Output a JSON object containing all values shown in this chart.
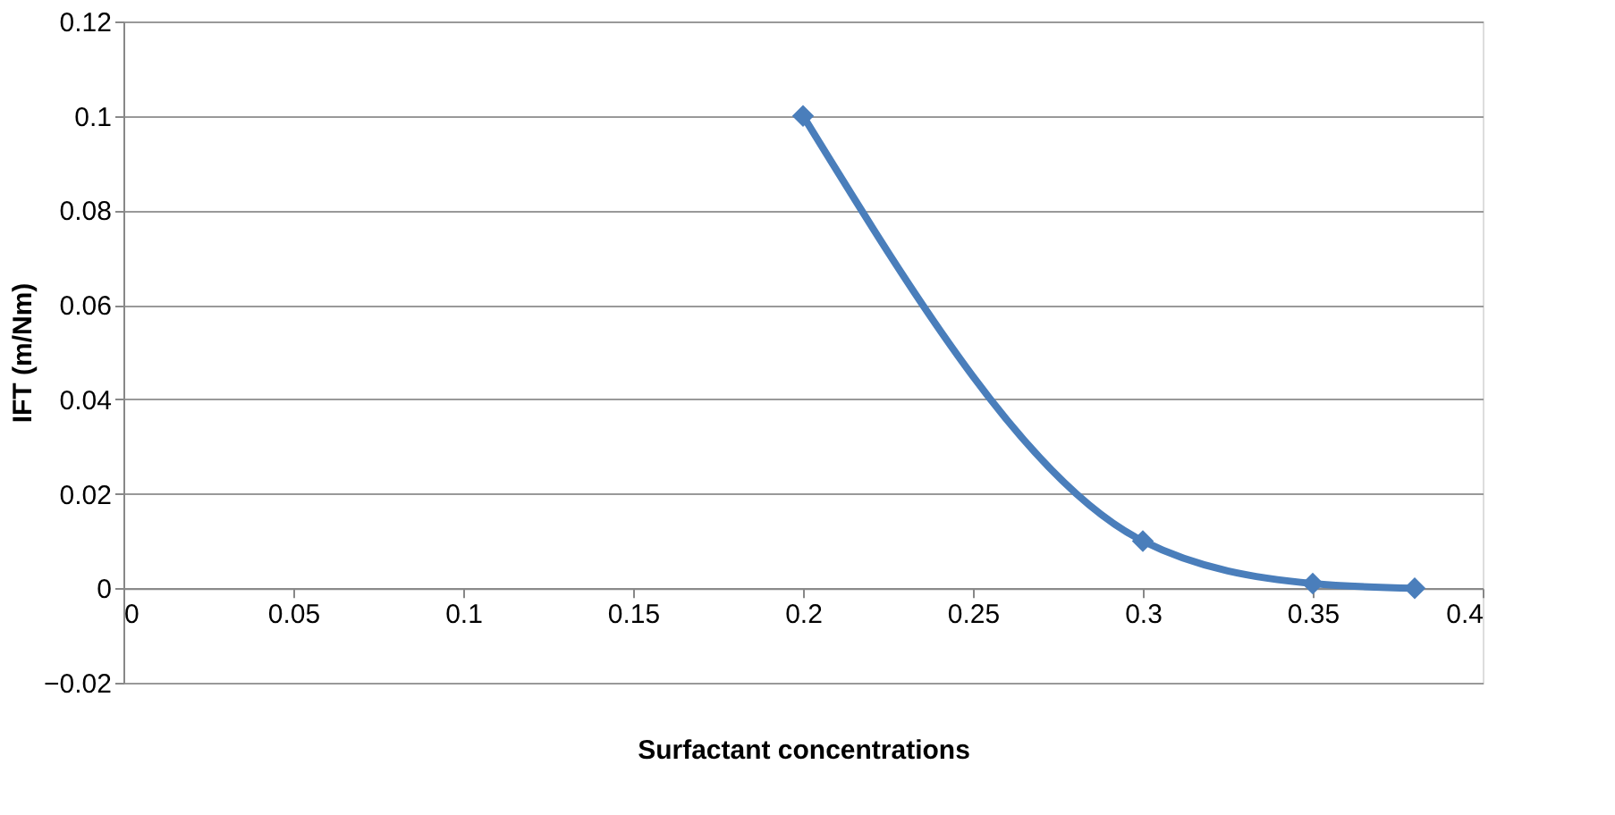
{
  "chart_data": {
    "type": "line",
    "xlabel": "Surfactant concentrations",
    "ylabel": "IFT (m/Nm)",
    "x": [
      0.2,
      0.3,
      0.35,
      0.38
    ],
    "series": [
      {
        "color": "#4a7ebb",
        "values": [
          0.1,
          0.01,
          0.001,
          0
        ]
      }
    ],
    "xlim": [
      0,
      0.4
    ],
    "xticks": [
      0,
      0.05,
      0.1,
      0.15,
      0.2,
      0.25,
      0.3,
      0.35,
      0.4
    ],
    "ylim": [
      -0.02,
      0.12
    ],
    "yticks": [
      -0.02,
      0,
      0.02,
      0.04,
      0.06,
      0.08,
      0.1,
      0.12
    ],
    "grid": "y",
    "marker": "diamond",
    "line_style": "solid"
  }
}
